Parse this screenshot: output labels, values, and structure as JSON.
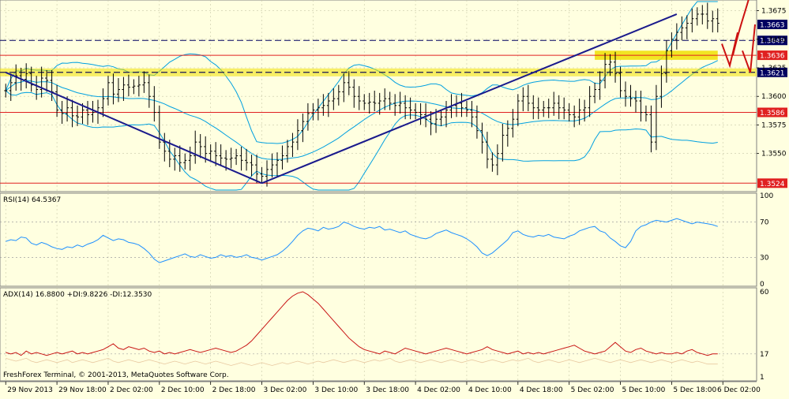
{
  "chart_data": [
    {
      "type": "candlestick",
      "title": "",
      "subtitle": "",
      "price_ticks": [
        "1.3675",
        "1.3650",
        "1.3625",
        "1.3600",
        "1.3575",
        "1.3550"
      ],
      "price_ylim": [
        1.3518,
        1.3683
      ],
      "bar_count": 140,
      "horizontal_levels": [
        {
          "value": 1.3663,
          "label": "1.3663",
          "color": "#000060",
          "style": "box"
        },
        {
          "value": 1.3649,
          "label": "1.3649",
          "color": "#000060",
          "style": "dashed"
        },
        {
          "value": 1.3636,
          "label": "1.3636",
          "color": "#e02020",
          "style": "solid"
        },
        {
          "value": 1.3621,
          "label": "1.3621",
          "color": "#f0e000",
          "style": "dashed-yellow"
        },
        {
          "value": 1.3586,
          "label": "1.3586",
          "color": "#e02020",
          "style": "solid"
        },
        {
          "value": 1.3524,
          "label": "1.3524",
          "color": "#e02020",
          "style": "solid"
        }
      ],
      "trendlines": [
        {
          "from": [
            0,
            1.3621
          ],
          "to": [
            50,
            1.3524
          ]
        },
        {
          "from": [
            50,
            1.3524
          ],
          "to": [
            131,
            1.3672
          ]
        }
      ],
      "highlight_band": {
        "from_bar": 115,
        "to_bar": 139,
        "low": 1.3632,
        "high": 1.364,
        "color": "#f0e000"
      },
      "annotations": [
        "red hand-drawn arrows near price axis"
      ],
      "ohlc_close": [
        1.3605,
        1.3612,
        1.3618,
        1.3615,
        1.362,
        1.361,
        1.3606,
        1.3616,
        1.3614,
        1.3604,
        1.3588,
        1.3585,
        1.359,
        1.3583,
        1.3582,
        1.3588,
        1.3584,
        1.3586,
        1.359,
        1.3598,
        1.3612,
        1.3602,
        1.3606,
        1.361,
        1.3608,
        1.3609,
        1.361,
        1.3612,
        1.36,
        1.3586,
        1.356,
        1.3552,
        1.3545,
        1.3548,
        1.3542,
        1.3544,
        1.3548,
        1.356,
        1.3556,
        1.355,
        1.3552,
        1.3548,
        1.3546,
        1.3545,
        1.3546,
        1.3548,
        1.3544,
        1.3542,
        1.354,
        1.3532,
        1.353,
        1.3536,
        1.354,
        1.3544,
        1.3548,
        1.3556,
        1.356,
        1.357,
        1.3578,
        1.3585,
        1.3588,
        1.359,
        1.3592,
        1.3596,
        1.3598,
        1.3604,
        1.3612,
        1.3608,
        1.36,
        1.3596,
        1.3594,
        1.3595,
        1.3594,
        1.3596,
        1.3598,
        1.3594,
        1.3592,
        1.3594,
        1.359,
        1.3588,
        1.3586,
        1.3584,
        1.358,
        1.3576,
        1.358,
        1.3582,
        1.3588,
        1.3592,
        1.3594,
        1.359,
        1.3588,
        1.3582,
        1.357,
        1.356,
        1.3545,
        1.354,
        1.355,
        1.3566,
        1.3572,
        1.358,
        1.3596,
        1.36,
        1.3594,
        1.359,
        1.3588,
        1.359,
        1.359,
        1.3594,
        1.359,
        1.3588,
        1.3584,
        1.3582,
        1.3588,
        1.359,
        1.36,
        1.3606,
        1.3614,
        1.3628,
        1.363,
        1.362,
        1.3605,
        1.36,
        1.3598,
        1.3596,
        1.3586,
        1.3584,
        1.356,
        1.36,
        1.362,
        1.364,
        1.365,
        1.3656,
        1.366,
        1.3664,
        1.3668,
        1.3672,
        1.3672,
        1.3666,
        1.3668,
        1.3664
      ],
      "x_tick_labels": [
        "29 Nov 2013",
        "29 Nov 18:00",
        "2 Dec 02:00",
        "2 Dec 10:00",
        "2 Dec 18:00",
        "3 Dec 02:00",
        "3 Dec 10:00",
        "3 Dec 18:00",
        "4 Dec 02:00",
        "4 Dec 10:00",
        "4 Dec 18:00",
        "5 Dec 02:00",
        "5 Dec 10:00",
        "5 Dec 18:00",
        "6 Dec 02:00"
      ],
      "x_tick_bars": [
        0,
        10,
        20,
        30,
        40,
        50,
        60,
        70,
        80,
        90,
        100,
        110,
        120,
        130,
        140
      ],
      "indicators": [
        {
          "name": "Bollinger Bands",
          "color": "#00a0e0"
        }
      ]
    },
    {
      "type": "line",
      "title": "RSI(14) 64.5367",
      "ylim": [
        0,
        100
      ],
      "y_ticks": [
        "100",
        "70",
        "30",
        "0"
      ],
      "levels": [
        70,
        30
      ],
      "series": [
        {
          "name": "",
          "color": "#1e90ff",
          "values": [
            48,
            50,
            49,
            53,
            52,
            46,
            44,
            47,
            45,
            42,
            40,
            39,
            42,
            41,
            44,
            42,
            45,
            47,
            50,
            55,
            52,
            49,
            51,
            50,
            47,
            46,
            44,
            40,
            35,
            28,
            24,
            26,
            28,
            30,
            32,
            34,
            31,
            30,
            33,
            31,
            29,
            30,
            33,
            31,
            32,
            30,
            31,
            33,
            30,
            29,
            27,
            29,
            31,
            33,
            37,
            42,
            48,
            55,
            60,
            63,
            62,
            60,
            64,
            62,
            63,
            65,
            70,
            68,
            65,
            63,
            62,
            64,
            63,
            65,
            61,
            62,
            60,
            58,
            60,
            56,
            54,
            52,
            51,
            53,
            57,
            59,
            61,
            58,
            56,
            54,
            51,
            47,
            42,
            35,
            32,
            35,
            40,
            45,
            50,
            58,
            60,
            56,
            54,
            53,
            55,
            54,
            56,
            53,
            52,
            51,
            54,
            56,
            60,
            62,
            64,
            65,
            60,
            58,
            52,
            48,
            43,
            41,
            48,
            60,
            65,
            67,
            70,
            72,
            71,
            70,
            72,
            74,
            72,
            70,
            68,
            70,
            69,
            68,
            67,
            65
          ]
        }
      ]
    },
    {
      "type": "line",
      "title": "ADX(14) 16.8800 +DI:9.8226 -DI:12.3530",
      "ylim": [
        0,
        60
      ],
      "y_ticks": [
        "60",
        "17",
        "1"
      ],
      "levels": [
        17
      ],
      "series": [
        {
          "name": "",
          "color": "#c81414",
          "values": [
            18,
            17,
            18,
            16,
            19,
            17,
            18,
            17,
            16,
            17,
            18,
            17,
            18,
            19,
            17,
            18,
            17,
            18,
            19,
            20,
            22,
            24,
            21,
            20,
            22,
            21,
            20,
            21,
            19,
            18,
            19,
            17,
            18,
            17,
            18,
            19,
            20,
            19,
            18,
            19,
            20,
            21,
            20,
            19,
            18,
            19,
            21,
            23,
            26,
            30,
            34,
            38,
            42,
            46,
            50,
            54,
            57,
            59,
            60,
            58,
            55,
            52,
            48,
            44,
            40,
            36,
            32,
            28,
            25,
            22,
            20,
            19,
            18,
            17,
            19,
            18,
            17,
            19,
            21,
            20,
            19,
            18,
            17,
            18,
            19,
            20,
            21,
            20,
            19,
            18,
            17,
            18,
            19,
            20,
            22,
            20,
            19,
            18,
            17,
            18,
            19,
            17,
            18,
            17,
            18,
            17,
            18,
            19,
            20,
            21,
            22,
            23,
            21,
            19,
            18,
            17,
            18,
            19,
            22,
            25,
            22,
            19,
            18,
            20,
            21,
            19,
            18,
            17,
            18,
            17,
            17,
            18,
            17,
            19,
            20,
            18,
            17,
            16,
            17,
            17
          ]
        },
        {
          "name": "",
          "color": "#e8c8a0",
          "values": [
            14,
            13,
            12,
            13,
            14,
            12,
            11,
            12,
            13,
            12,
            11,
            12,
            13,
            11,
            12,
            13,
            12,
            11,
            12,
            13,
            14,
            12,
            11,
            12,
            13,
            12,
            11,
            12,
            13,
            12,
            11,
            10,
            11,
            12,
            11,
            10,
            11,
            12,
            11,
            10,
            11,
            12,
            11,
            10,
            9,
            10,
            11,
            10,
            9,
            10,
            11,
            10,
            9,
            10,
            11,
            10,
            11,
            12,
            11,
            10,
            11,
            12,
            11,
            12,
            13,
            12,
            11,
            12,
            13,
            12,
            11,
            12,
            13,
            12,
            13,
            14,
            12,
            11,
            12,
            13,
            12,
            11,
            12,
            13,
            12,
            11,
            12,
            13,
            12,
            11,
            12,
            13,
            12,
            11,
            12,
            13,
            12,
            11,
            12,
            13,
            12,
            13,
            14,
            12,
            11,
            12,
            13,
            12,
            11,
            12,
            13,
            12,
            11,
            12,
            13,
            14,
            13,
            12,
            11,
            12,
            13,
            12,
            11,
            12,
            13,
            12,
            11,
            12,
            13,
            12,
            11,
            12,
            13,
            12,
            11,
            12,
            11,
            10,
            10,
            10
          ]
        }
      ]
    }
  ],
  "footer": {
    "copyright": "FreshForex Terminal, © 2001-2013, MetaQuotes Software Corp."
  },
  "colors": {
    "background": "#ffffe0",
    "grid": "#b0b0b0",
    "candle": "#000000",
    "accent_red": "#e02020",
    "accent_yellow": "#f0e000",
    "trend": "#1a1a8c"
  }
}
